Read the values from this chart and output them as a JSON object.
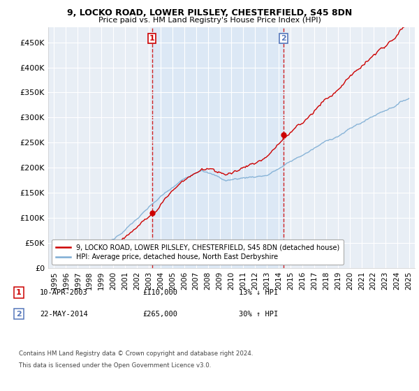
{
  "title1": "9, LOCKO ROAD, LOWER PILSLEY, CHESTERFIELD, S45 8DN",
  "title2": "Price paid vs. HM Land Registry's House Price Index (HPI)",
  "ylabel_ticks": [
    "£0",
    "£50K",
    "£100K",
    "£150K",
    "£200K",
    "£250K",
    "£300K",
    "£350K",
    "£400K",
    "£450K"
  ],
  "ytick_values": [
    0,
    50000,
    100000,
    150000,
    200000,
    250000,
    300000,
    350000,
    400000,
    450000
  ],
  "ylim": [
    0,
    480000
  ],
  "xlim_start": 1994.5,
  "xlim_end": 2025.5,
  "sale1_x": 2003.27,
  "sale1_y": 110000,
  "sale2_x": 2014.38,
  "sale2_y": 265000,
  "sale1_label": "10-APR-2003",
  "sale1_price": "£110,000",
  "sale1_rel": "13% ↓ HPI",
  "sale2_label": "22-MAY-2014",
  "sale2_price": "£265,000",
  "sale2_rel": "30% ↑ HPI",
  "legend_line1": "9, LOCKO ROAD, LOWER PILSLEY, CHESTERFIELD, S45 8DN (detached house)",
  "legend_line2": "HPI: Average price, detached house, North East Derbyshire",
  "footer1": "Contains HM Land Registry data © Crown copyright and database right 2024.",
  "footer2": "This data is licensed under the Open Government Licence v3.0.",
  "property_color": "#cc0000",
  "hpi_color": "#7dadd4",
  "shade_color": "#dce8f5",
  "background_color": "#ffffff",
  "plot_bg": "#e8eef5"
}
